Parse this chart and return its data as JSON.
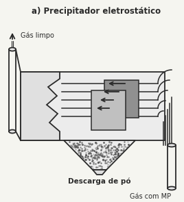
{
  "title": "a) Precipitador eletrostático",
  "label_gas_limpo": "Gás limpo",
  "label_descarga": "Descarga de pó",
  "label_gas_mp": "Gás com MP",
  "bg_color": "#f5f5f0",
  "line_color": "#2a2a2a",
  "gray_box": "#d8d8d8",
  "gray_plate1": "#909090",
  "gray_plate2": "#c0c0c0",
  "dot_color": "#555555",
  "title_fontsize": 8.5,
  "label_fontsize": 7.0
}
